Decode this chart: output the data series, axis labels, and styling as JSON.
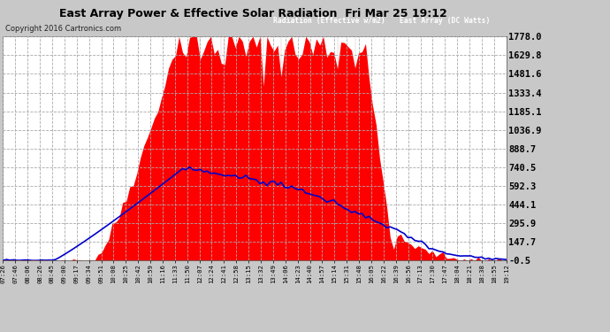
{
  "title": "East Array Power & Effective Solar Radiation  Fri Mar 25 19:12",
  "copyright": "Copyright 2016 Cartronics.com",
  "legend_blue": "Radiation (Effective w/m2)",
  "legend_red": "East Array (DC Watts)",
  "yticks": [
    -0.5,
    147.7,
    295.9,
    444.1,
    592.3,
    740.5,
    888.7,
    1036.9,
    1185.1,
    1333.4,
    1481.6,
    1629.8,
    1778.0
  ],
  "ymin": -0.5,
  "ymax": 1778.0,
  "bg_color": "#c8c8c8",
  "plot_bg_color": "#ffffff",
  "grid_color": "#aaaaaa",
  "red_color": "#ff0000",
  "blue_color": "#0000cc",
  "title_color": "#000000",
  "n_points": 144,
  "xtick_labels": [
    "07:26",
    "07:46",
    "08:06",
    "08:26",
    "08:45",
    "09:00",
    "09:17",
    "09:34",
    "09:51",
    "10:08",
    "10:25",
    "10:42",
    "10:59",
    "11:16",
    "11:33",
    "11:50",
    "12:07",
    "12:24",
    "12:41",
    "12:58",
    "13:15",
    "13:32",
    "13:49",
    "14:06",
    "14:23",
    "14:40",
    "14:57",
    "15:14",
    "15:31",
    "15:48",
    "16:05",
    "16:22",
    "16:39",
    "16:56",
    "17:13",
    "17:30",
    "17:47",
    "18:04",
    "18:21",
    "18:38",
    "18:55",
    "19:12"
  ]
}
